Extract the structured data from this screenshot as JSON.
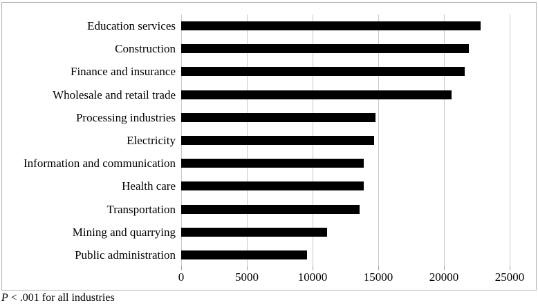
{
  "chart_data": {
    "type": "bar",
    "orientation": "horizontal",
    "title": "",
    "categories": [
      "Education services",
      "Construction",
      "Finance and insurance",
      "Wholesale and retail trade",
      "Processing industries",
      "Electricity",
      "Information and communication",
      "Health care",
      "Transportation",
      "Mining and quarrying",
      "Public administration"
    ],
    "values": [
      22800,
      21900,
      21600,
      20600,
      14800,
      14700,
      13900,
      13900,
      13600,
      11100,
      9600
    ],
    "xlabel": "",
    "ylabel": "",
    "xlim": [
      0,
      25000
    ],
    "xticks": [
      0,
      5000,
      10000,
      15000,
      20000,
      25000
    ],
    "xtick_labels": [
      "0",
      "5000",
      "10000",
      "15000",
      "20000",
      "25000"
    ],
    "grid": "vertical",
    "legend": "none",
    "bar_color": "#000000",
    "gridline_color": "#c9c9c9"
  },
  "footnote": {
    "p_label": "P",
    "text": " < .001 for all industries"
  }
}
